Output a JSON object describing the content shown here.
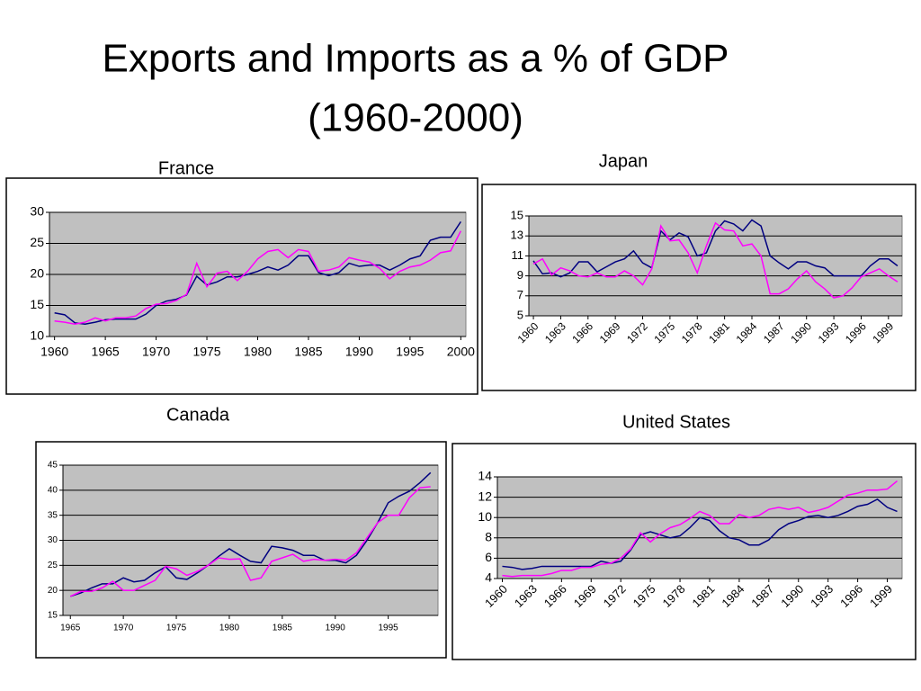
{
  "title": [
    "Exports and Imports as a % of GDP",
    "(1960-2000)"
  ],
  "chart_data": [
    {
      "type": "line",
      "title": "France",
      "x": [
        1960,
        1961,
        1962,
        1963,
        1964,
        1965,
        1966,
        1967,
        1968,
        1969,
        1970,
        1971,
        1972,
        1973,
        1974,
        1975,
        1976,
        1977,
        1978,
        1979,
        1980,
        1981,
        1982,
        1983,
        1984,
        1985,
        1986,
        1987,
        1988,
        1989,
        1990,
        1991,
        1992,
        1993,
        1994,
        1995,
        1996,
        1997,
        1998,
        1999,
        2000
      ],
      "series": [
        {
          "color": "#000080",
          "values": [
            13.8,
            13.5,
            12.2,
            12.0,
            12.3,
            12.7,
            12.8,
            12.8,
            12.8,
            13.6,
            15.0,
            15.7,
            16.0,
            16.7,
            19.7,
            18.3,
            18.8,
            19.6,
            19.6,
            20.0,
            20.5,
            21.2,
            20.7,
            21.5,
            23.0,
            23.0,
            20.3,
            19.8,
            20.3,
            21.8,
            21.3,
            21.5,
            21.5,
            20.7,
            21.5,
            22.5,
            23.0,
            25.5,
            26.0,
            26.0,
            28.5
          ]
        },
        {
          "color": "#ff00ff",
          "values": [
            12.5,
            12.3,
            12.0,
            12.3,
            13.0,
            12.5,
            13.0,
            13.0,
            13.3,
            14.5,
            15.2,
            15.3,
            15.8,
            16.8,
            21.8,
            18.0,
            20.2,
            20.5,
            19.0,
            20.5,
            22.5,
            23.7,
            24.0,
            22.7,
            24.0,
            23.7,
            20.5,
            20.7,
            21.2,
            22.7,
            22.3,
            22.0,
            21.0,
            19.3,
            20.5,
            21.2,
            21.5,
            22.3,
            23.5,
            23.8,
            27.0
          ]
        }
      ],
      "xlim": [
        1959.5,
        2000.5
      ],
      "xticks": [
        1960,
        1965,
        1970,
        1975,
        1980,
        1985,
        1990,
        1995,
        2000
      ],
      "ylim": [
        10,
        30
      ],
      "yticks": [
        10,
        15,
        20,
        25,
        30
      ],
      "grid": true
    },
    {
      "type": "line",
      "title": "Japan",
      "x": [
        1960,
        1961,
        1962,
        1963,
        1964,
        1965,
        1966,
        1967,
        1968,
        1969,
        1970,
        1971,
        1972,
        1973,
        1974,
        1975,
        1976,
        1977,
        1978,
        1979,
        1980,
        1981,
        1982,
        1983,
        1984,
        1985,
        1986,
        1987,
        1988,
        1989,
        1990,
        1991,
        1992,
        1993,
        1994,
        1995,
        1996,
        1997,
        1998,
        1999,
        2000
      ],
      "series": [
        {
          "color": "#000080",
          "values": [
            10.5,
            9.2,
            9.3,
            8.9,
            9.3,
            10.4,
            10.4,
            9.4,
            9.9,
            10.4,
            10.7,
            11.5,
            10.3,
            9.8,
            13.5,
            12.6,
            13.3,
            12.9,
            11.0,
            11.3,
            13.5,
            14.5,
            14.2,
            13.5,
            14.6,
            14.0,
            11.0,
            10.3,
            9.7,
            10.4,
            10.4,
            10.0,
            9.8,
            9.0,
            9.0,
            9.0,
            9.0,
            10.0,
            10.7,
            10.7,
            10.0
          ]
        },
        {
          "color": "#ff00ff",
          "values": [
            10.2,
            10.7,
            9.1,
            9.8,
            9.5,
            9.0,
            8.9,
            9.3,
            8.9,
            8.9,
            9.5,
            9.0,
            8.1,
            9.7,
            14.0,
            12.5,
            12.6,
            11.3,
            9.3,
            12.0,
            14.3,
            13.6,
            13.5,
            12.0,
            12.2,
            11.0,
            7.2,
            7.2,
            7.7,
            8.7,
            9.5,
            8.4,
            7.7,
            6.8,
            7.0,
            7.8,
            8.9,
            9.3,
            9.7,
            9.0,
            8.4
          ]
        }
      ],
      "xlim": [
        1959.5,
        2000.5
      ],
      "xticks": [
        1960,
        1963,
        1966,
        1969,
        1972,
        1975,
        1978,
        1981,
        1984,
        1987,
        1990,
        1993,
        1996,
        1999
      ],
      "ylim": [
        5,
        15
      ],
      "yticks": [
        5,
        7,
        9,
        11,
        13,
        15
      ],
      "grid": true
    },
    {
      "type": "line",
      "title": "Canada",
      "x": [
        1965,
        1966,
        1967,
        1968,
        1969,
        1970,
        1971,
        1972,
        1973,
        1974,
        1975,
        1976,
        1977,
        1978,
        1979,
        1980,
        1981,
        1982,
        1983,
        1984,
        1985,
        1986,
        1987,
        1988,
        1989,
        1990,
        1991,
        1992,
        1993,
        1994,
        1995,
        1996,
        1997,
        1998,
        1999
      ],
      "series": [
        {
          "color": "#000080",
          "values": [
            18.8,
            19.5,
            20.5,
            21.3,
            21.3,
            22.5,
            21.7,
            22.0,
            23.5,
            24.7,
            22.5,
            22.2,
            23.5,
            25.0,
            26.8,
            28.3,
            27.0,
            25.8,
            25.5,
            28.8,
            28.5,
            28.0,
            27.0,
            27.0,
            26.0,
            26.0,
            25.5,
            27.0,
            30.0,
            33.5,
            37.5,
            38.8,
            39.8,
            41.5,
            43.5
          ]
        },
        {
          "color": "#ff00ff",
          "values": [
            18.8,
            19.8,
            19.8,
            20.5,
            21.8,
            20.0,
            20.0,
            21.0,
            22.0,
            24.8,
            24.3,
            23.0,
            23.8,
            25.0,
            26.5,
            26.2,
            26.3,
            22.0,
            22.5,
            25.8,
            26.5,
            27.2,
            25.8,
            26.2,
            26.0,
            26.2,
            26.0,
            27.5,
            30.5,
            33.5,
            35.0,
            35.0,
            38.5,
            40.5,
            40.7
          ]
        }
      ],
      "xlim": [
        1964.3,
        1999.7
      ],
      "xticks": [
        1965,
        1970,
        1975,
        1980,
        1985,
        1990,
        1995
      ],
      "ylim": [
        15,
        45
      ],
      "yticks": [
        15,
        20,
        25,
        30,
        35,
        40,
        45
      ],
      "grid": true
    },
    {
      "type": "line",
      "title": "United States",
      "x": [
        1960,
        1961,
        1962,
        1963,
        1964,
        1965,
        1966,
        1967,
        1968,
        1969,
        1970,
        1971,
        1972,
        1973,
        1974,
        1975,
        1976,
        1977,
        1978,
        1979,
        1980,
        1981,
        1982,
        1983,
        1984,
        1985,
        1986,
        1987,
        1988,
        1989,
        1990,
        1991,
        1992,
        1993,
        1994,
        1995,
        1996,
        1997,
        1998,
        1999,
        2000
      ],
      "series": [
        {
          "color": "#000080",
          "values": [
            5.2,
            5.1,
            4.9,
            5.0,
            5.2,
            5.2,
            5.2,
            5.2,
            5.2,
            5.2,
            5.7,
            5.5,
            5.7,
            6.8,
            8.3,
            8.6,
            8.3,
            8.0,
            8.2,
            9.0,
            10.0,
            9.7,
            8.7,
            8.0,
            7.8,
            7.3,
            7.3,
            7.8,
            8.8,
            9.4,
            9.7,
            10.1,
            10.2,
            10.0,
            10.2,
            10.6,
            11.1,
            11.3,
            11.8,
            11.0,
            10.6
          ]
        },
        {
          "color": "#ff00ff",
          "values": [
            4.3,
            4.2,
            4.3,
            4.3,
            4.3,
            4.5,
            4.8,
            4.8,
            5.1,
            5.1,
            5.4,
            5.5,
            6.0,
            6.9,
            8.5,
            7.6,
            8.4,
            9.0,
            9.3,
            9.9,
            10.6,
            10.2,
            9.4,
            9.4,
            10.3,
            10.0,
            10.2,
            10.8,
            11.0,
            10.8,
            11.0,
            10.5,
            10.7,
            11.0,
            11.6,
            12.2,
            12.4,
            12.7,
            12.7,
            12.8,
            13.6
          ]
        }
      ],
      "xlim": [
        1959.5,
        2000.5
      ],
      "xticks": [
        1960,
        1963,
        1966,
        1969,
        1972,
        1975,
        1978,
        1981,
        1984,
        1987,
        1990,
        1993,
        1996,
        1999
      ],
      "ylim": [
        4,
        14
      ],
      "yticks": [
        4,
        6,
        8,
        10,
        12,
        14
      ],
      "grid": true
    }
  ]
}
